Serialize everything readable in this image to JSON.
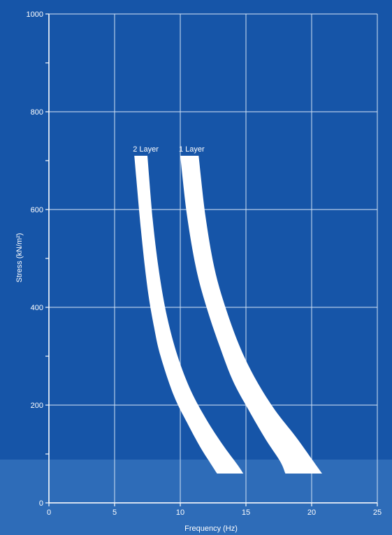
{
  "chart_data": {
    "type": "area",
    "xlabel": "Frequency (Hz)",
    "ylabel": "Stress (kN/m²)",
    "xlim": [
      0,
      25
    ],
    "ylim": [
      0,
      1000
    ],
    "xticks": [
      0,
      5,
      10,
      15,
      20,
      25
    ],
    "yticks": [
      0,
      200,
      400,
      600,
      800,
      1000
    ],
    "grid": true,
    "colors": {
      "background": "#1655a8",
      "bottom_band": "#2e6cb8",
      "grid": "#cfe0f4",
      "band_fill": "#ffffff"
    },
    "series": [
      {
        "name": "2 Layer",
        "upper_edge": {
          "x": [
            6.5,
            7.0,
            7.5,
            8.0,
            8.5,
            9.5,
            10.5,
            11.5,
            12.2,
            12.8
          ],
          "y": [
            710,
            560,
            440,
            360,
            300,
            220,
            165,
            115,
            85,
            60
          ]
        },
        "lower_edge": {
          "x": [
            7.5,
            7.9,
            8.4,
            9.0,
            9.8,
            10.8,
            12.0,
            13.2,
            14.3,
            14.8
          ],
          "y": [
            710,
            580,
            470,
            380,
            300,
            230,
            170,
            120,
            80,
            60
          ]
        }
      },
      {
        "name": "1 Layer",
        "upper_edge": {
          "x": [
            10.0,
            10.5,
            11.2,
            12.0,
            13.0,
            14.0,
            15.2,
            16.5,
            17.6,
            18.0
          ],
          "y": [
            710,
            590,
            480,
            400,
            320,
            250,
            190,
            130,
            85,
            60
          ]
        },
        "lower_edge": {
          "x": [
            11.4,
            11.9,
            12.6,
            13.5,
            14.6,
            15.8,
            17.2,
            18.8,
            20.0,
            20.8
          ],
          "y": [
            710,
            590,
            480,
            395,
            315,
            250,
            190,
            135,
            90,
            60
          ]
        }
      }
    ]
  }
}
